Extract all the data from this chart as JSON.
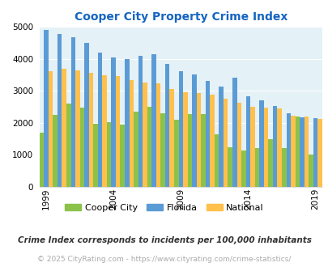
{
  "title": "Cooper City Property Crime Index",
  "years": [
    1999,
    2000,
    2001,
    2002,
    2003,
    2004,
    2005,
    2006,
    2007,
    2008,
    2009,
    2010,
    2011,
    2012,
    2013,
    2014,
    2015,
    2016,
    2017,
    2018,
    2019
  ],
  "cooper_city": [
    1700,
    2250,
    2600,
    2480,
    1980,
    2020,
    1950,
    2350,
    2500,
    2300,
    2100,
    2280,
    2280,
    1650,
    1250,
    1130,
    1200,
    1480,
    1200,
    2200,
    1000
  ],
  "florida": [
    4900,
    4780,
    4680,
    4500,
    4180,
    4030,
    4000,
    4100,
    4150,
    3850,
    3600,
    3500,
    3300,
    3120,
    3420,
    2830,
    2700,
    2530,
    2300,
    2180,
    2150
  ],
  "national": [
    3600,
    3680,
    3640,
    3550,
    3480,
    3450,
    3330,
    3250,
    3220,
    3050,
    2960,
    2920,
    2870,
    2750,
    2620,
    2490,
    2480,
    2450,
    2230,
    2190,
    2110
  ],
  "colors": {
    "cooper_city": "#8bc34a",
    "florida": "#5b9bd5",
    "national": "#ffc04c"
  },
  "bg_color": "#e4f1f7",
  "ylim": [
    0,
    5000
  ],
  "yticks": [
    0,
    1000,
    2000,
    3000,
    4000,
    5000
  ],
  "xlabel_ticks": [
    1999,
    2004,
    2009,
    2014,
    2019
  ],
  "legend_labels": [
    "Cooper City",
    "Florida",
    "National"
  ],
  "note": "Crime Index corresponds to incidents per 100,000 inhabitants",
  "footer": "© 2025 CityRating.com - https://www.cityrating.com/crime-statistics/",
  "title_color": "#1565c0",
  "note_color": "#333333",
  "footer_color": "#aaaaaa"
}
